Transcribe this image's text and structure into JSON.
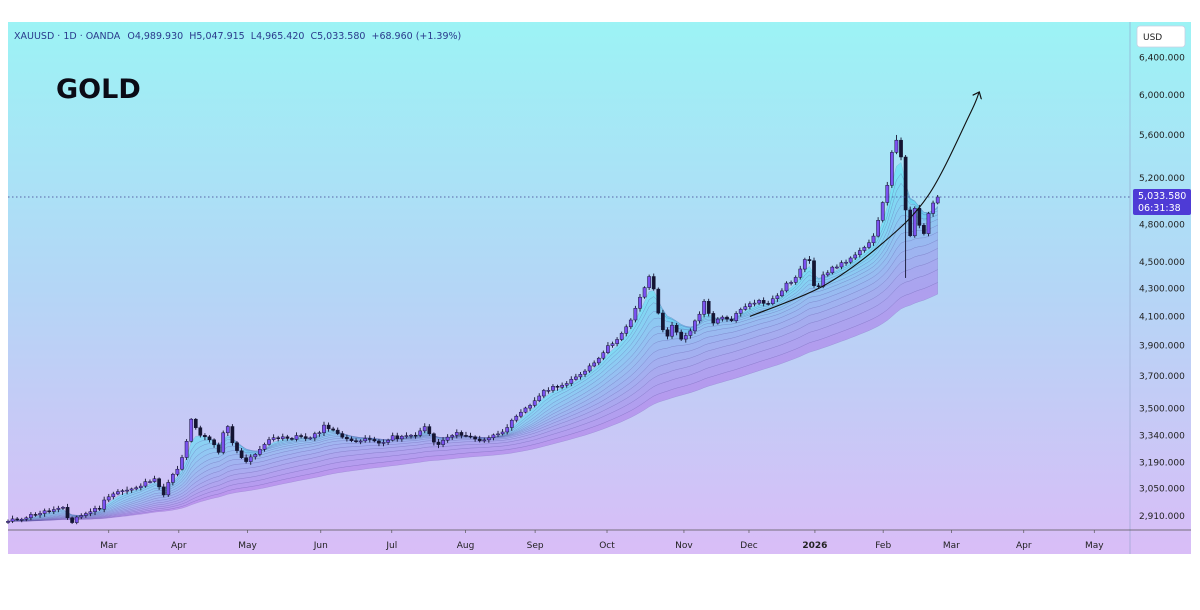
{
  "header": {
    "symbol_line": "XAUUSD · 1D · OANDA",
    "open_label": "O",
    "open": "4,989.930",
    "high_label": "H",
    "high": "5,047.915",
    "low_label": "L",
    "low": "4,965.420",
    "close_label": "C",
    "close": "5,033.580",
    "change": "+68.960 (+1.39%)"
  },
  "chart_title": "GOLD",
  "currency": "USD",
  "price_badge": {
    "price": "5,033.580",
    "countdown": "06:31:38"
  },
  "colors": {
    "bull": "#7b52f0",
    "bear": "#141432",
    "badge": "#4e3bd6",
    "bg_top": "#9cf3f5",
    "bg_bottom": "#d9bdf7",
    "header_text": "#2a3a8c"
  },
  "chart_data": {
    "type": "candlestick",
    "title": "GOLD",
    "xlabel": "",
    "ylabel": "USD",
    "scale": "log",
    "ylim": [
      2840,
      6800
    ],
    "y_ticks": [
      {
        "label": "6,400.000",
        "value": 6400
      },
      {
        "label": "6,000.000",
        "value": 6000
      },
      {
        "label": "5,600.000",
        "value": 5600
      },
      {
        "label": "5,200.000",
        "value": 5200
      },
      {
        "label": "4,800.000",
        "value": 4800
      },
      {
        "label": "4,500.000",
        "value": 4500
      },
      {
        "label": "4,300.000",
        "value": 4300
      },
      {
        "label": "4,100.000",
        "value": 4100
      },
      {
        "label": "3,900.000",
        "value": 3900
      },
      {
        "label": "3,700.000",
        "value": 3700
      },
      {
        "label": "3,500.000",
        "value": 3500
      },
      {
        "label": "3,340.000",
        "value": 3340
      },
      {
        "label": "3,190.000",
        "value": 3190
      },
      {
        "label": "3,050.000",
        "value": 3050
      },
      {
        "label": "2,910.000",
        "value": 2910
      }
    ],
    "x_ticks": [
      {
        "label": "Mar",
        "t": 22.0,
        "bold": false
      },
      {
        "label": "Apr",
        "t": 37.3,
        "bold": false
      },
      {
        "label": "May",
        "t": 52.3,
        "bold": false
      },
      {
        "label": "Jun",
        "t": 68.3,
        "bold": false
      },
      {
        "label": "Jul",
        "t": 83.8,
        "bold": false
      },
      {
        "label": "Aug",
        "t": 99.9,
        "bold": false
      },
      {
        "label": "Sep",
        "t": 115.1,
        "bold": false
      },
      {
        "label": "Oct",
        "t": 130.8,
        "bold": false
      },
      {
        "label": "Nov",
        "t": 147.6,
        "bold": false
      },
      {
        "label": "Dec",
        "t": 161.8,
        "bold": false
      },
      {
        "label": "2026",
        "t": 176.2,
        "bold": true
      },
      {
        "label": "Feb",
        "t": 191.1,
        "bold": false
      },
      {
        "label": "Mar",
        "t": 206.0,
        "bold": false
      },
      {
        "label": "Apr",
        "t": 221.8,
        "bold": false
      },
      {
        "label": "May",
        "t": 237.2,
        "bold": false
      }
    ],
    "t_range": [
      0,
      245
    ],
    "last_price": 5033.58,
    "close_anchors": [
      [
        0,
        2880
      ],
      [
        2,
        2895
      ],
      [
        4,
        2905
      ],
      [
        6,
        2920
      ],
      [
        8,
        2930
      ],
      [
        10,
        2940
      ],
      [
        12,
        2945
      ],
      [
        13,
        2900
      ],
      [
        14,
        2880
      ],
      [
        15,
        2905
      ],
      [
        17,
        2920
      ],
      [
        18,
        2935
      ],
      [
        20,
        2950
      ],
      [
        21,
        2985
      ],
      [
        22,
        3015
      ],
      [
        24,
        3035
      ],
      [
        26,
        3040
      ],
      [
        28,
        3050
      ],
      [
        30,
        3080
      ],
      [
        32,
        3110
      ],
      [
        33,
        3060
      ],
      [
        34,
        3010
      ],
      [
        35,
        3090
      ],
      [
        37,
        3150
      ],
      [
        38,
        3210
      ],
      [
        39,
        3310
      ],
      [
        40,
        3430
      ],
      [
        41,
        3380
      ],
      [
        42,
        3340
      ],
      [
        44,
        3320
      ],
      [
        45,
        3280
      ],
      [
        46,
        3240
      ],
      [
        47,
        3350
      ],
      [
        48,
        3390
      ],
      [
        49,
        3300
      ],
      [
        50,
        3250
      ],
      [
        51,
        3220
      ],
      [
        52,
        3200
      ],
      [
        54,
        3240
      ],
      [
        56,
        3290
      ],
      [
        58,
        3330
      ],
      [
        60,
        3330
      ],
      [
        62,
        3310
      ],
      [
        63,
        3350
      ],
      [
        64,
        3330
      ],
      [
        66,
        3330
      ],
      [
        68,
        3360
      ],
      [
        69,
        3410
      ],
      [
        70,
        3380
      ],
      [
        72,
        3350
      ],
      [
        74,
        3330
      ],
      [
        76,
        3300
      ],
      [
        78,
        3320
      ],
      [
        80,
        3310
      ],
      [
        82,
        3300
      ],
      [
        84,
        3330
      ],
      [
        86,
        3330
      ],
      [
        88,
        3340
      ],
      [
        90,
        3360
      ],
      [
        91,
        3390
      ],
      [
        92,
        3350
      ],
      [
        93,
        3300
      ],
      [
        94,
        3290
      ],
      [
        95,
        3310
      ],
      [
        96,
        3330
      ],
      [
        98,
        3350
      ],
      [
        99,
        3350
      ],
      [
        100,
        3340
      ],
      [
        101,
        3330
      ],
      [
        102,
        3320
      ],
      [
        103,
        3315
      ],
      [
        104,
        3320
      ],
      [
        105,
        3330
      ],
      [
        106,
        3340
      ],
      [
        108,
        3370
      ],
      [
        110,
        3420
      ],
      [
        112,
        3470
      ],
      [
        114,
        3520
      ],
      [
        116,
        3580
      ],
      [
        118,
        3620
      ],
      [
        120,
        3640
      ],
      [
        122,
        3650
      ],
      [
        124,
        3690
      ],
      [
        126,
        3740
      ],
      [
        128,
        3790
      ],
      [
        130,
        3860
      ],
      [
        132,
        3920
      ],
      [
        134,
        3980
      ],
      [
        135,
        4020
      ],
      [
        136,
        4070
      ],
      [
        137,
        4150
      ],
      [
        138,
        4240
      ],
      [
        139,
        4310
      ],
      [
        140,
        4380
      ],
      [
        141,
        4300
      ],
      [
        142,
        4120
      ],
      [
        143,
        4010
      ],
      [
        144,
        3970
      ],
      [
        145,
        4030
      ],
      [
        146,
        3990
      ],
      [
        147,
        3950
      ],
      [
        148,
        3970
      ],
      [
        149,
        3990
      ],
      [
        150,
        4060
      ],
      [
        151,
        4110
      ],
      [
        152,
        4200
      ],
      [
        153,
        4120
      ],
      [
        154,
        4060
      ],
      [
        156,
        4090
      ],
      [
        158,
        4080
      ],
      [
        160,
        4150
      ],
      [
        162,
        4200
      ],
      [
        164,
        4210
      ],
      [
        166,
        4190
      ],
      [
        168,
        4250
      ],
      [
        170,
        4330
      ],
      [
        172,
        4380
      ],
      [
        174,
        4510
      ],
      [
        175,
        4520
      ],
      [
        176,
        4330
      ],
      [
        177,
        4330
      ],
      [
        178,
        4410
      ],
      [
        180,
        4450
      ],
      [
        182,
        4490
      ],
      [
        184,
        4530
      ],
      [
        186,
        4580
      ],
      [
        188,
        4640
      ],
      [
        189,
        4700
      ],
      [
        190,
        4850
      ],
      [
        191,
        4990
      ],
      [
        192,
        5150
      ],
      [
        193,
        5420
      ],
      [
        194,
        5560
      ],
      [
        195,
        5400
      ],
      [
        196,
        4910
      ],
      [
        197,
        4700
      ],
      [
        198,
        4930
      ],
      [
        199,
        4800
      ],
      [
        200,
        4720
      ],
      [
        201,
        4880
      ],
      [
        202,
        4980
      ],
      [
        203,
        5033.58
      ]
    ],
    "special_wicks": [
      {
        "t": 194,
        "high": 5600
      },
      {
        "t": 196,
        "low": 4380
      }
    ],
    "curve": [
      [
        162,
        4100
      ],
      [
        178,
        4320
      ],
      [
        191,
        4650
      ],
      [
        201,
        5050
      ],
      [
        210,
        5800
      ],
      [
        212,
        6020
      ]
    ]
  }
}
